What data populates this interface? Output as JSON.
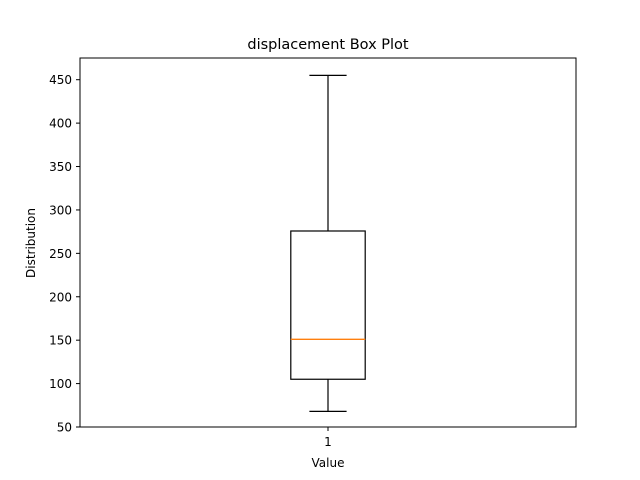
{
  "chart_data": {
    "type": "box",
    "title": "displacement Box Plot",
    "xlabel": "Value",
    "ylabel": "Distribution",
    "categories": [
      "1"
    ],
    "ylim": [
      50,
      475
    ],
    "yticks": [
      50,
      100,
      150,
      200,
      250,
      300,
      350,
      400,
      450
    ],
    "boxes": [
      {
        "label": "1",
        "whisker_low": 68,
        "q1": 105,
        "median": 151,
        "q3": 275.75,
        "whisker_high": 455
      }
    ],
    "grid": false,
    "colors": {
      "box": "#000000",
      "median": "#ff7f0e",
      "axes": "#000000"
    }
  }
}
